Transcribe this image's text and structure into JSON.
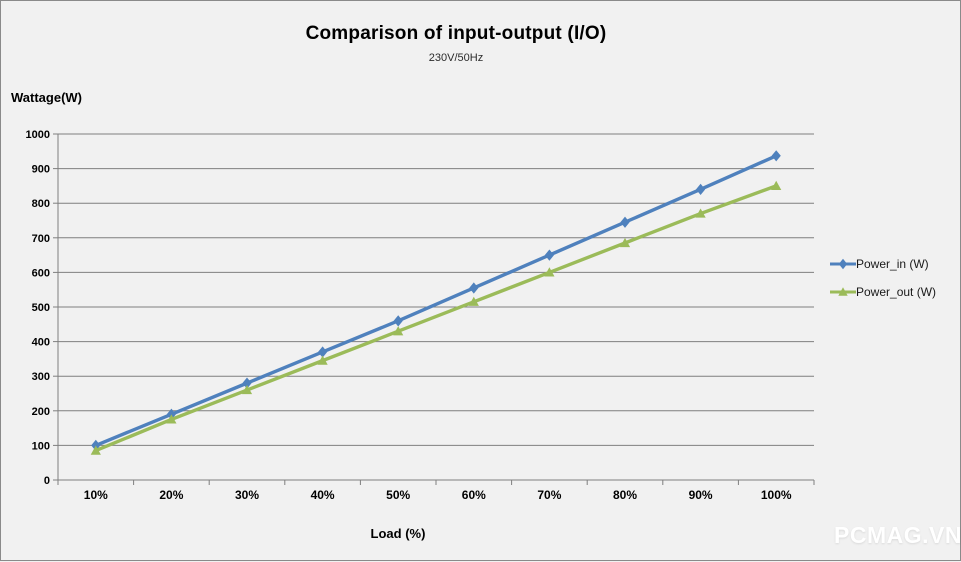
{
  "header": {
    "title": "Comparison of input-output (I/O)",
    "subtitle": "230V/50Hz"
  },
  "watermark": "PCMAG.VN",
  "colors": {
    "background": "#f1f1f1",
    "frame_border": "#8a8a8a",
    "gridline": "#7f7f7f",
    "axis": "#7f7f7f",
    "power_in": "#4f81bd",
    "power_out": "#9bbb59"
  },
  "chart_data": {
    "type": "line",
    "title": "Comparison of input-output (I/O)",
    "subtitle": "230V/50Hz",
    "xlabel": "Load (%)",
    "ylabel": "Wattage(W)",
    "categories": [
      "10%",
      "20%",
      "30%",
      "40%",
      "50%",
      "60%",
      "70%",
      "80%",
      "90%",
      "100%"
    ],
    "series": [
      {
        "name": "Power_in (W)",
        "color": "#4f81bd",
        "marker": "diamond",
        "values": [
          100,
          190,
          280,
          370,
          460,
          555,
          650,
          745,
          840,
          937
        ]
      },
      {
        "name": "Power_out (W)",
        "color": "#9bbb59",
        "marker": "triangle",
        "values": [
          85,
          175,
          260,
          345,
          430,
          515,
          600,
          685,
          770,
          850
        ]
      }
    ],
    "ylim": [
      0,
      1000
    ],
    "ytick_step": 100,
    "grid": true,
    "legend_position": "right"
  }
}
